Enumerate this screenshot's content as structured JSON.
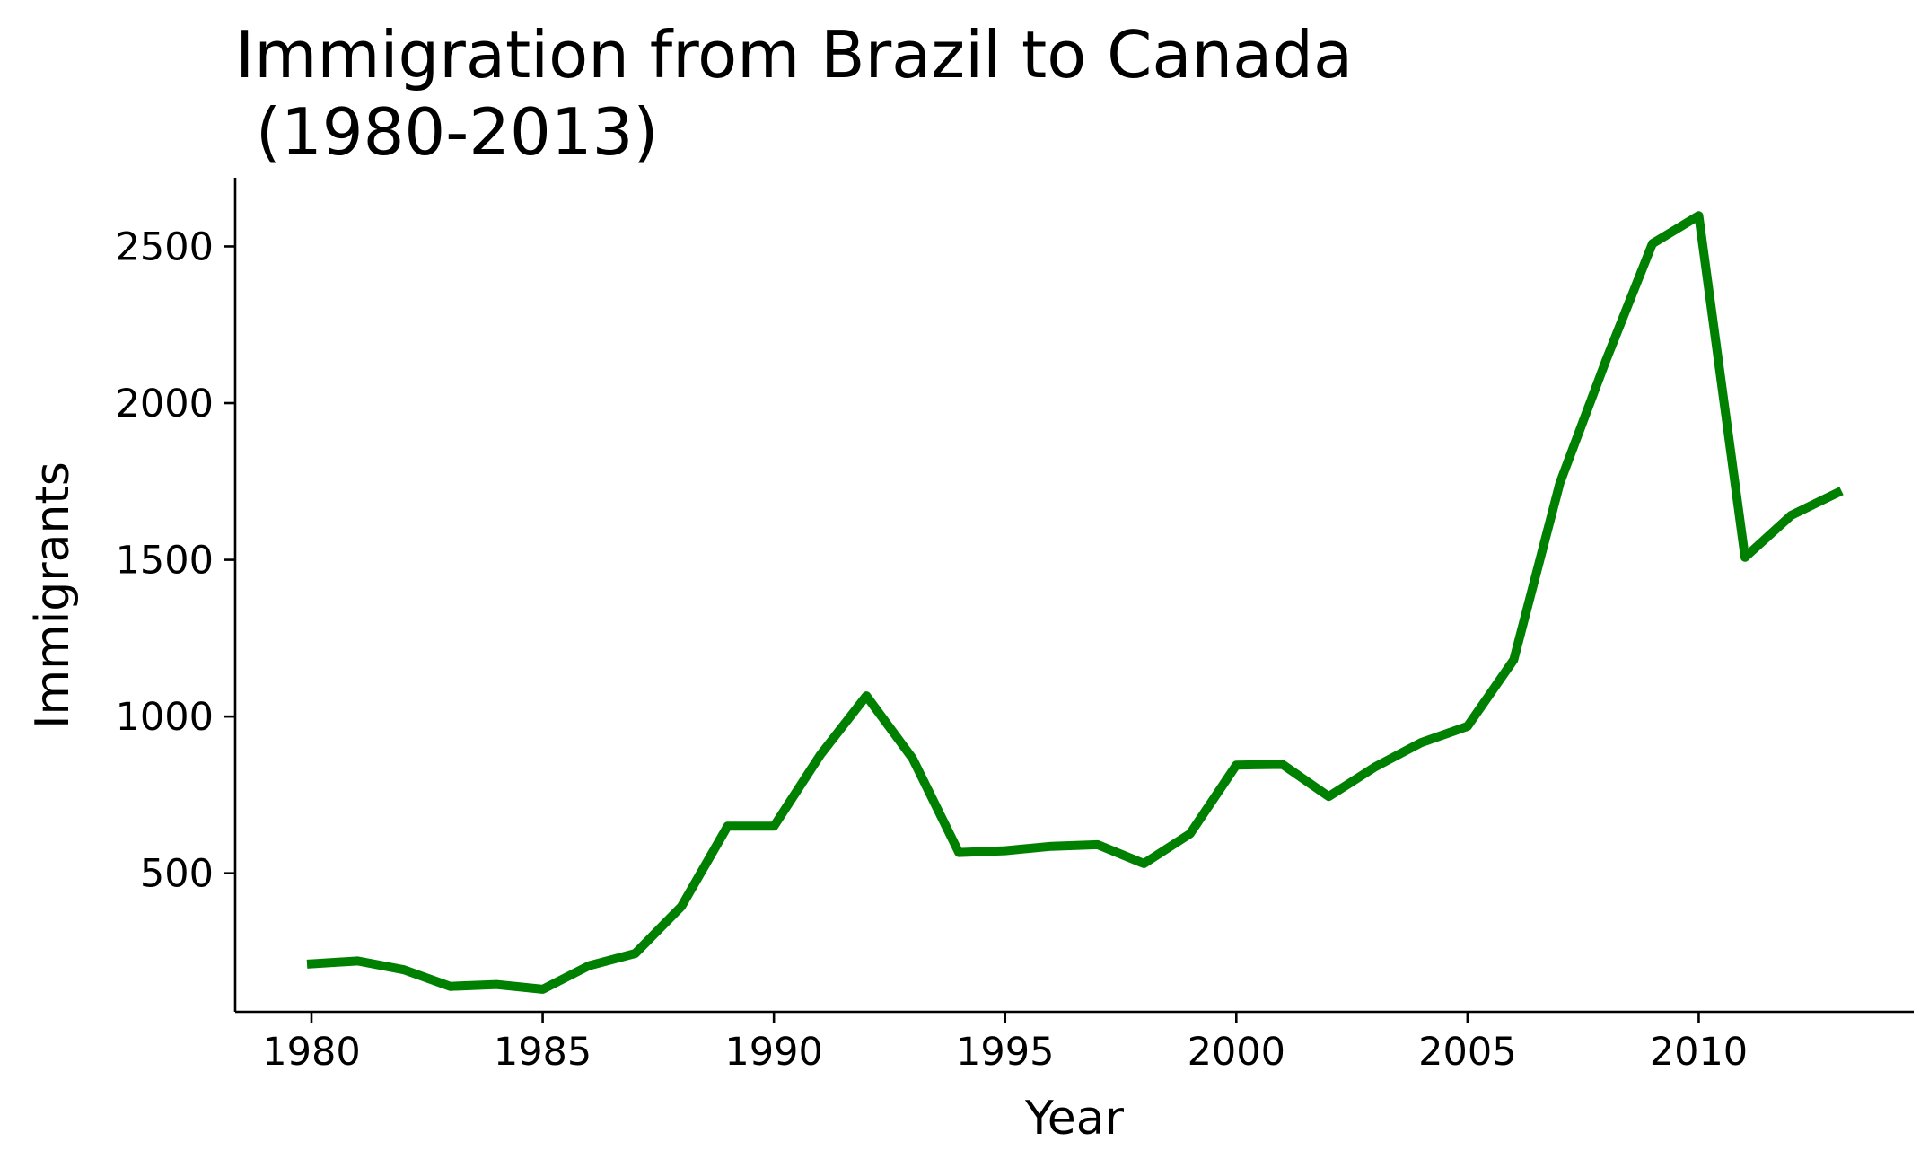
{
  "chart_data": {
    "type": "line",
    "title_line1": "Immigration from Brazil to Canada",
    "title_line2": " (1980-2013)",
    "xlabel": "Year",
    "ylabel": "Immigrants",
    "x": [
      1980,
      1981,
      1982,
      1983,
      1984,
      1985,
      1986,
      1987,
      1988,
      1989,
      1990,
      1991,
      1992,
      1993,
      1994,
      1995,
      1996,
      1997,
      1998,
      1999,
      2000,
      2001,
      2002,
      2003,
      2004,
      2005,
      2006,
      2007,
      2008,
      2009,
      2010,
      2011,
      2012,
      2013
    ],
    "series": [
      {
        "values": [
          211,
          220,
          192,
          139,
          145,
          130,
          205,
          244,
          394,
          650,
          650,
          877,
          1066,
          866,
          566,
          572,
          586,
          591,
          531,
          626,
          845,
          847,
          745,
          839,
          917,
          969,
          1181,
          1746,
          2138,
          2509,
          2598,
          1508,
          1642,
          1714
        ],
        "color": "#008000"
      }
    ],
    "xticks": [
      1980,
      1985,
      1990,
      1995,
      2000,
      2005,
      2010
    ],
    "yticks": [
      500,
      1000,
      1500,
      2000,
      2500
    ],
    "xlim": [
      1978.35,
      2014.65
    ],
    "ylim": [
      58,
      2719
    ],
    "grid": false,
    "legend": "none"
  }
}
